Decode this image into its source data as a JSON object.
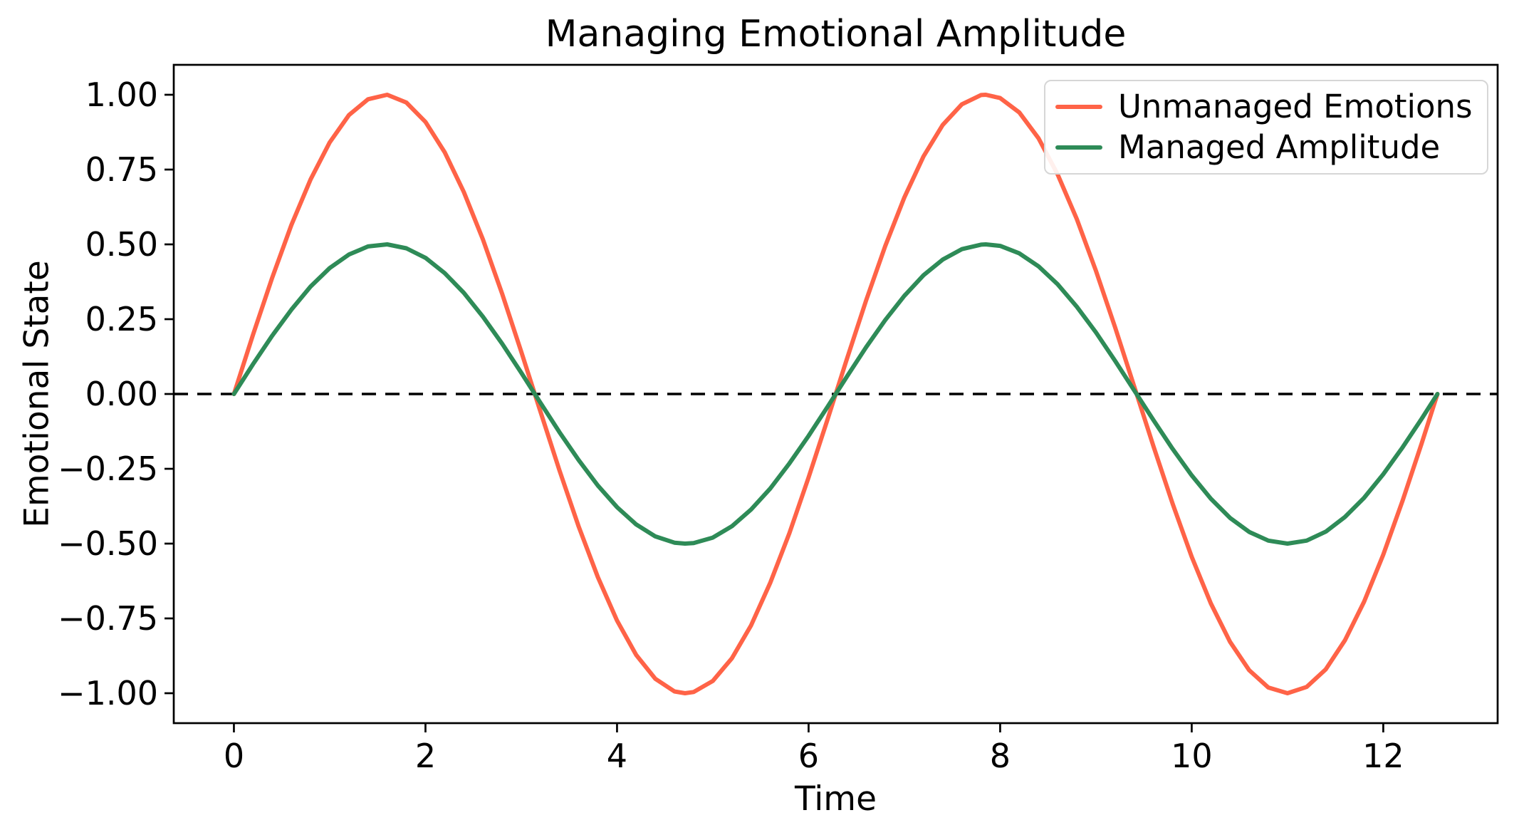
{
  "figure": {
    "background": "#ffffff"
  },
  "chart_data": {
    "type": "line",
    "title": "Managing Emotional Amplitude",
    "xlabel": "Time",
    "ylabel": "Emotional State",
    "xlim": [
      -0.628,
      13.194
    ],
    "ylim": [
      -1.1,
      1.1
    ],
    "grid": false,
    "legend": {
      "position": "upper right",
      "frame": true
    },
    "xticks": {
      "values": [
        0,
        2,
        4,
        6,
        8,
        10,
        12
      ],
      "labels": [
        "0",
        "2",
        "4",
        "6",
        "8",
        "10",
        "12"
      ]
    },
    "yticks": {
      "values": [
        1.0,
        0.75,
        0.5,
        0.25,
        0.0,
        -0.25,
        -0.5,
        -0.75,
        -1.0
      ],
      "labels": [
        "1.00",
        "0.75",
        "0.50",
        "0.25",
        "0.00",
        "−0.25",
        "−0.50",
        "−0.75",
        "−1.00"
      ]
    },
    "zero_line": {
      "y": 0.0,
      "style": "dashed",
      "color": "#000000"
    },
    "x": [
      0,
      0.2,
      0.4,
      0.6,
      0.8,
      1.0,
      1.2,
      1.4,
      1.6,
      1.8,
      2.0,
      2.2,
      2.4,
      2.6,
      2.8,
      3.0,
      3.2,
      3.4,
      3.6,
      3.8,
      4.0,
      4.2,
      4.4,
      4.6,
      4.71,
      4.8,
      5.0,
      5.2,
      5.4,
      5.6,
      5.8,
      6.0,
      6.2,
      6.4,
      6.6,
      6.8,
      7.0,
      7.2,
      7.4,
      7.6,
      7.8,
      7.85,
      8.0,
      8.2,
      8.4,
      8.6,
      8.8,
      9.0,
      9.2,
      9.4,
      9.6,
      9.8,
      10.0,
      10.2,
      10.4,
      10.6,
      10.8,
      11.0,
      11.2,
      11.4,
      11.6,
      11.8,
      12.0,
      12.2,
      12.4,
      12.566
    ],
    "series": [
      {
        "name": "Unmanaged Emotions",
        "color": "#ff6347",
        "amplitude": 1.0,
        "values": [
          0.0,
          0.199,
          0.389,
          0.565,
          0.717,
          0.841,
          0.932,
          0.985,
          1.0,
          0.974,
          0.909,
          0.808,
          0.675,
          0.516,
          0.335,
          0.141,
          -0.058,
          -0.256,
          -0.443,
          -0.612,
          -0.757,
          -0.872,
          -0.952,
          -0.994,
          -1.0,
          -0.996,
          -0.959,
          -0.883,
          -0.773,
          -0.631,
          -0.465,
          -0.279,
          -0.083,
          0.117,
          0.312,
          0.494,
          0.657,
          0.794,
          0.899,
          0.968,
          0.999,
          1.0,
          0.989,
          0.941,
          0.855,
          0.734,
          0.585,
          0.412,
          0.223,
          0.025,
          -0.174,
          -0.366,
          -0.544,
          -0.7,
          -0.828,
          -0.923,
          -0.981,
          -1.0,
          -0.979,
          -0.92,
          -0.823,
          -0.694,
          -0.537,
          -0.358,
          -0.166,
          0.0
        ]
      },
      {
        "name": "Managed Amplitude",
        "color": "#2e8b57",
        "amplitude": 0.5,
        "values": [
          0.0,
          0.1,
          0.195,
          0.282,
          0.359,
          0.421,
          0.466,
          0.493,
          0.5,
          0.487,
          0.455,
          0.404,
          0.338,
          0.258,
          0.168,
          0.071,
          -0.029,
          -0.128,
          -0.221,
          -0.306,
          -0.378,
          -0.436,
          -0.476,
          -0.497,
          -0.5,
          -0.498,
          -0.48,
          -0.442,
          -0.386,
          -0.316,
          -0.232,
          -0.14,
          -0.042,
          0.058,
          0.156,
          0.247,
          0.328,
          0.397,
          0.449,
          0.484,
          0.499,
          0.5,
          0.495,
          0.47,
          0.427,
          0.367,
          0.292,
          0.206,
          0.111,
          0.012,
          -0.087,
          -0.183,
          -0.272,
          -0.35,
          -0.414,
          -0.461,
          -0.49,
          -0.5,
          -0.49,
          -0.46,
          -0.411,
          -0.347,
          -0.268,
          -0.179,
          -0.083,
          0.0
        ]
      }
    ]
  }
}
